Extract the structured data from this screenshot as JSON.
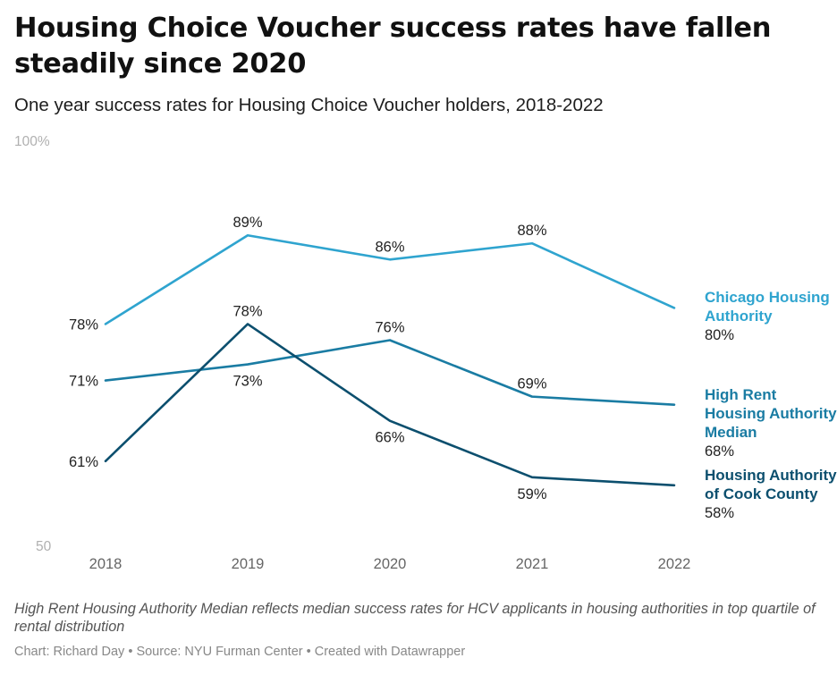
{
  "header": {
    "title": "Housing Choice Voucher success rates have fallen steadily since 2020",
    "subtitle": "One year success rates for Housing Choice Voucher holders, 2018-2022"
  },
  "chart_data": {
    "type": "line",
    "title": "Housing Choice Voucher success rates have fallen steadily since 2020",
    "subtitle": "One year success rates for Housing Choice Voucher holders, 2018-2022",
    "x": [
      "2018",
      "2019",
      "2020",
      "2021",
      "2022"
    ],
    "ylim": [
      50,
      100
    ],
    "yticks": [
      "50",
      "100%"
    ],
    "grid": false,
    "legend": "direct labels at line ends (right)",
    "series": [
      {
        "name": "Chicago Housing Authority",
        "label_lines": [
          "Chicago Housing",
          "Authority"
        ],
        "values": [
          78,
          89,
          86,
          88,
          80
        ],
        "color": "#2fa4cf",
        "value_labels": [
          "78%",
          "89%",
          "86%",
          "88%",
          "80%"
        ]
      },
      {
        "name": "High Rent Housing Authority Median",
        "label_lines": [
          "High Rent",
          "Housing Authority",
          "Median"
        ],
        "values": [
          71,
          73,
          76,
          69,
          68
        ],
        "color": "#1a7ca3",
        "value_labels": [
          "71%",
          "73%",
          "76%",
          "69%",
          "68%"
        ]
      },
      {
        "name": "Housing Authority of Cook County",
        "label_lines": [
          "Housing Authority",
          "of Cook County"
        ],
        "values": [
          61,
          78,
          66,
          59,
          58
        ],
        "color": "#0c4f6e",
        "value_labels": [
          "61%",
          "78%",
          "66%",
          "59%",
          "58%"
        ]
      }
    ]
  },
  "footer": {
    "note": "High Rent Housing Authority Median reflects median success rates for HCV applicants in housing authorities in top quartile of rental distribution",
    "author": "Chart: Richard Day",
    "source": "Source: NYU Furman Center",
    "tool": "Created with Datawrapper",
    "separator": " • "
  }
}
